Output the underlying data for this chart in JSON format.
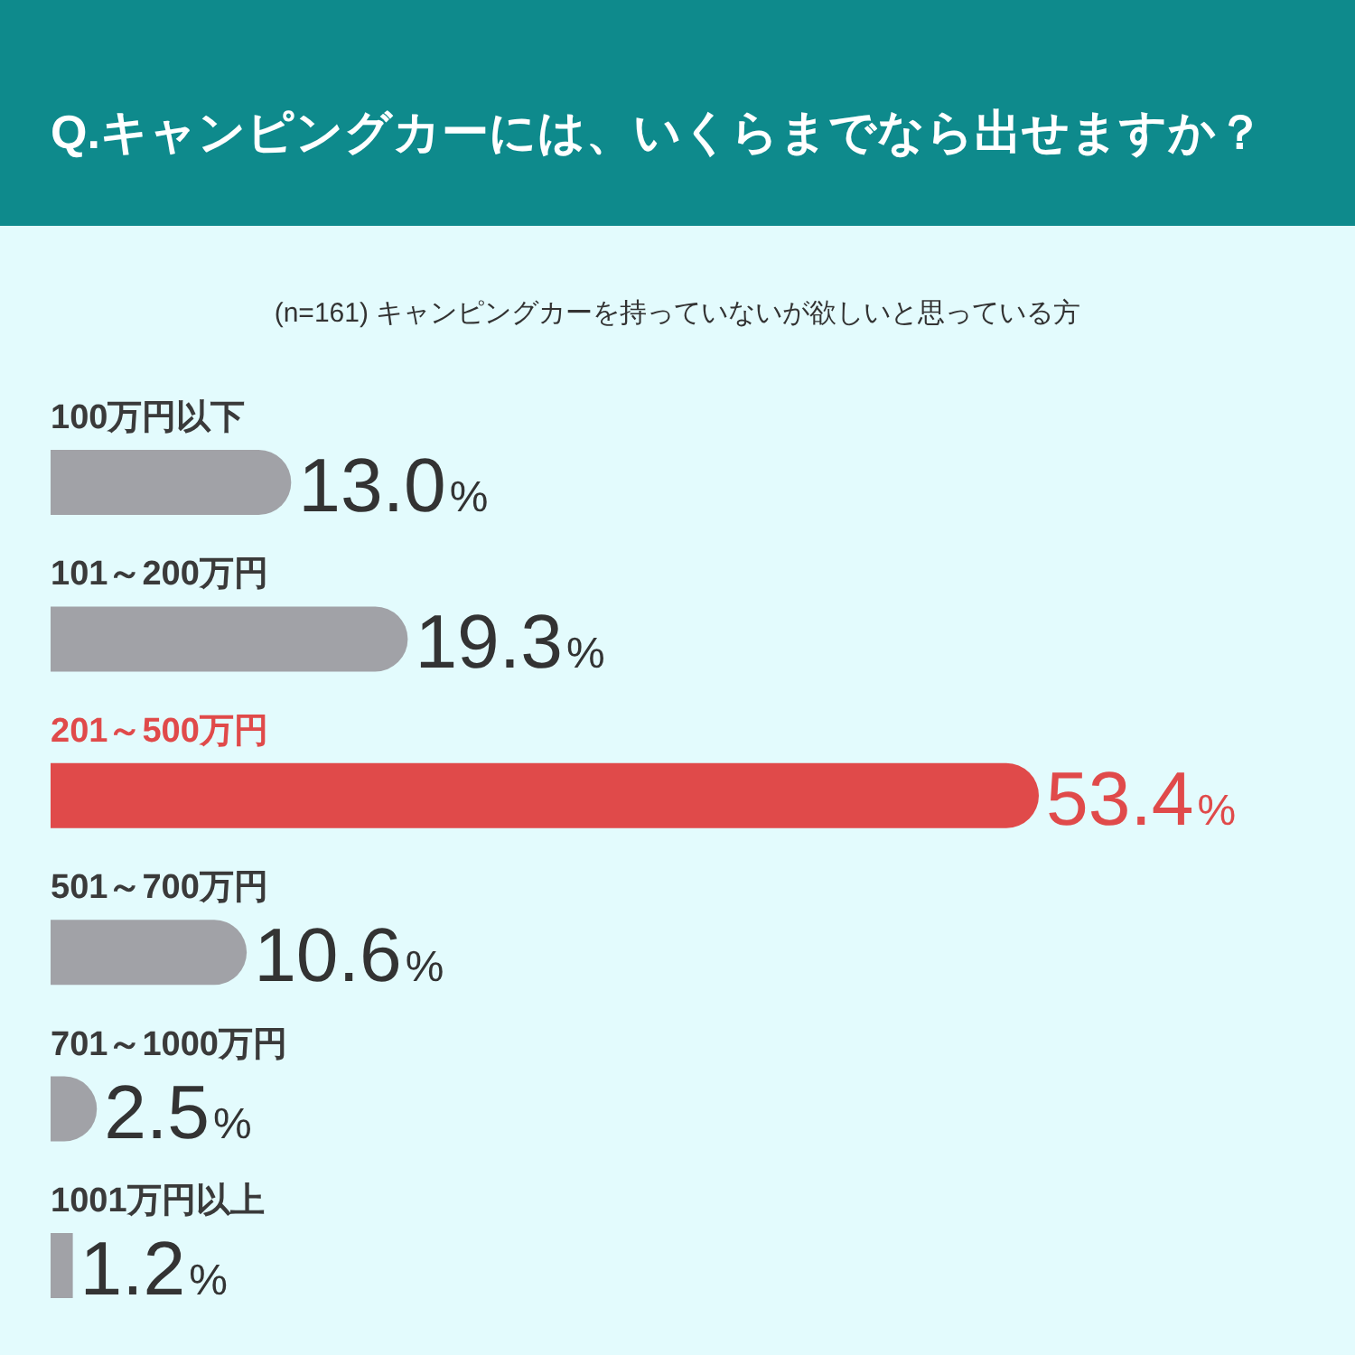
{
  "chart_data": {
    "type": "bar",
    "orientation": "horizontal",
    "title": "Q.キャンピングカーには、いくらまでなら出せますか？",
    "subtitle": "(n=161) キャンピングカーを持っていないが欲しいと思っている方",
    "categories": [
      "100万円以下",
      "101～200万円",
      "201～500万円",
      "501～700万円",
      "701～1000万円",
      "1001万円以上"
    ],
    "values": [
      13.0,
      19.3,
      53.4,
      10.6,
      2.5,
      1.2
    ],
    "colors": [
      "#a1a2a7",
      "#a1a2a7",
      "#e04a4a",
      "#a1a2a7",
      "#a1a2a7",
      "#a1a2a7"
    ],
    "value_labels": [
      "13.0%",
      "19.3%",
      "53.4%",
      "10.6%",
      "2.5%",
      "1.2%"
    ]
  }
}
